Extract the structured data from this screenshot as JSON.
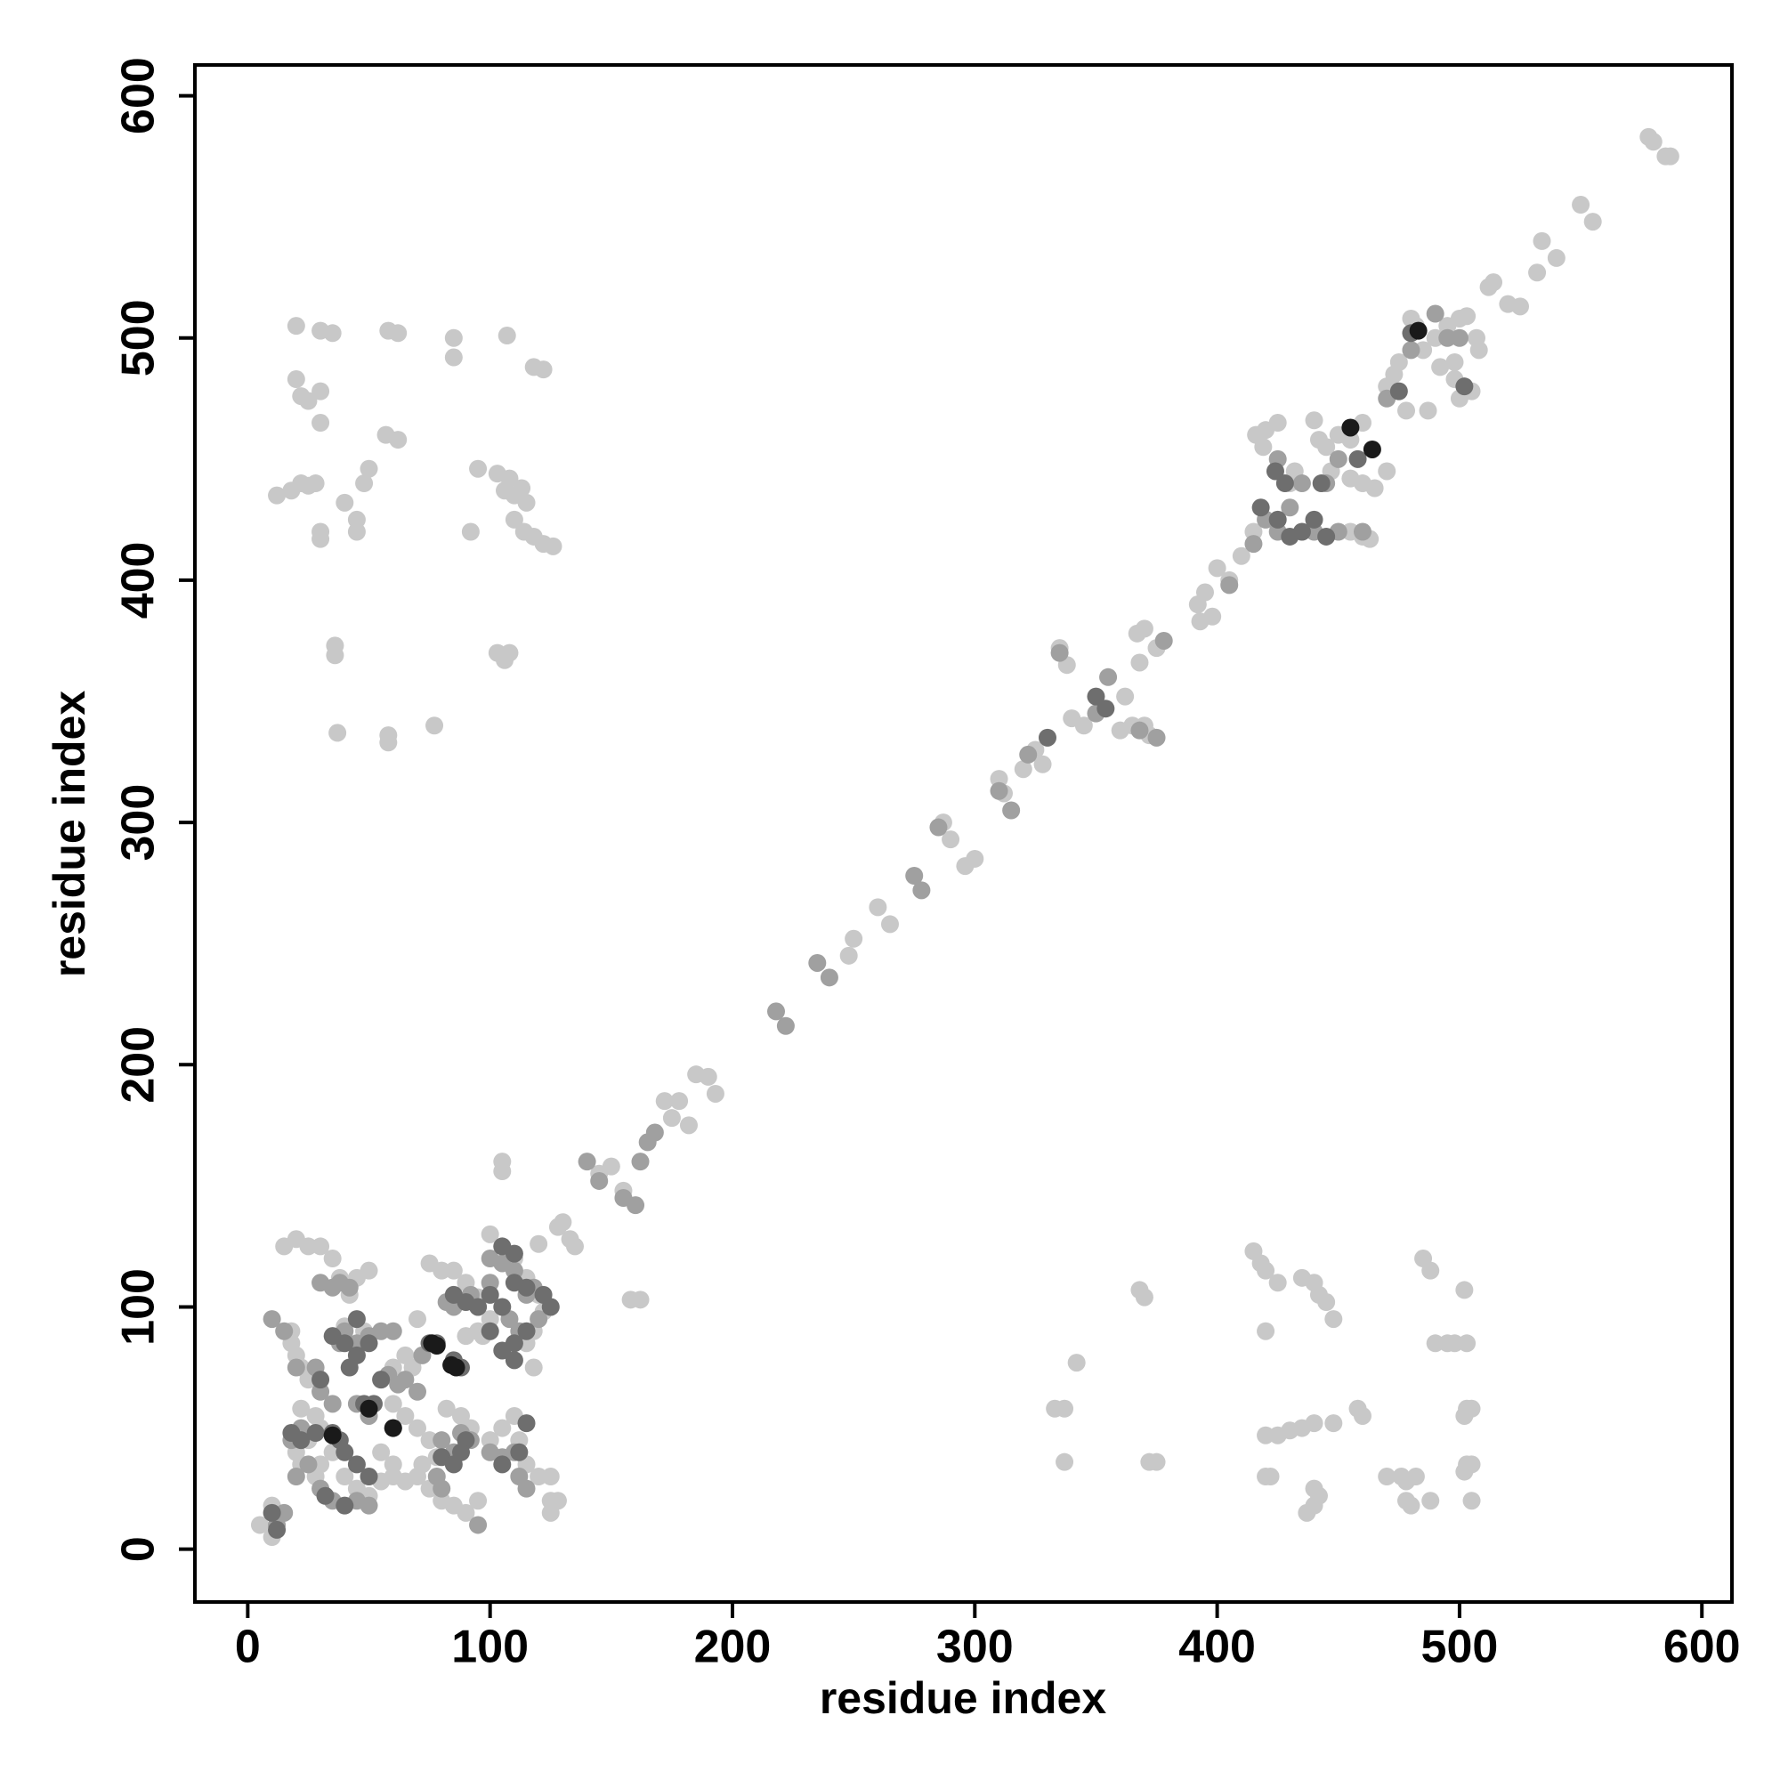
{
  "chart_data": {
    "type": "scatter",
    "x_label": "residue index",
    "y_label": "residue index",
    "xlim": [
      -21.8,
      612.4
    ],
    "ylim": [
      -21.8,
      612.7
    ],
    "xticks": [
      0,
      100,
      200,
      300,
      400,
      500,
      600
    ],
    "yticks": [
      0,
      100,
      200,
      300,
      400,
      500,
      600
    ],
    "series": [
      {
        "color": "#c8c8c8",
        "x": [
          578,
          580,
          585,
          587,
          550,
          555,
          540,
          534,
          532,
          512,
          514,
          525,
          520,
          503,
          500,
          507,
          508,
          505,
          500,
          498,
          495,
          490,
          485,
          480,
          482,
          475,
          478,
          470,
          473,
          487,
          492,
          498,
          460,
          455,
          450,
          445,
          440,
          442,
          447,
          455,
          460,
          465,
          470,
          463,
          460,
          455,
          425,
          420,
          416,
          419,
          430,
          432,
          410,
          415,
          405,
          400,
          395,
          392,
          398,
          393,
          370,
          375,
          367,
          368,
          362,
          365,
          360,
          370,
          372,
          338,
          335,
          340,
          345,
          310,
          312,
          320,
          325,
          328,
          300,
          296,
          287,
          290,
          250,
          248,
          260,
          265,
          190,
          193,
          185,
          178,
          182,
          172,
          175,
          150,
          145,
          155,
          158,
          162,
          133,
          128,
          120,
          95,
          100,
          97
        ],
        "y": [
          583,
          581,
          575,
          575,
          555,
          548,
          533,
          540,
          527,
          521,
          523,
          513,
          514,
          509,
          508,
          500,
          495,
          478,
          475,
          490,
          505,
          500,
          495,
          508,
          505,
          490,
          470,
          480,
          485,
          470,
          488,
          483,
          465,
          458,
          460,
          455,
          466,
          458,
          445,
          442,
          440,
          438,
          445,
          417,
          418,
          420,
          465,
          462,
          460,
          455,
          440,
          445,
          410,
          420,
          400,
          405,
          395,
          390,
          385,
          383,
          380,
          372,
          378,
          366,
          352,
          340,
          338,
          340,
          336,
          365,
          372,
          343,
          340,
          318,
          312,
          322,
          330,
          324,
          285,
          282,
          300,
          293,
          252,
          245,
          265,
          258,
          195,
          188,
          196,
          185,
          175,
          185,
          178,
          158,
          155,
          148,
          103,
          103,
          128,
          133,
          126,
          104,
          90,
          88
        ]
      },
      {
        "color": "#c8c8c8",
        "x": [
          20,
          30,
          35,
          58,
          62,
          85,
          85,
          107,
          118,
          122,
          20,
          22,
          25,
          30,
          30,
          57,
          62,
          50,
          48,
          40,
          45,
          45,
          30,
          30,
          12,
          18,
          22,
          25,
          28,
          92,
          95,
          103,
          108,
          106,
          110,
          113,
          115,
          110,
          114,
          118,
          122,
          126,
          36,
          36,
          103,
          106,
          108,
          37,
          58,
          58,
          77
        ],
        "y": [
          505,
          503,
          502,
          503,
          502,
          500,
          492,
          501,
          488,
          487,
          483,
          476,
          474,
          478,
          465,
          460,
          458,
          446,
          440,
          432,
          425,
          420,
          420,
          417,
          435,
          437,
          440,
          439,
          440,
          420,
          446,
          444,
          442,
          437,
          435,
          438,
          432,
          425,
          420,
          418,
          415,
          414,
          373,
          369,
          370,
          367,
          370,
          337,
          336,
          333,
          340
        ]
      },
      {
        "color": "#c8c8c8",
        "x": [
          415,
          418,
          420,
          425,
          435,
          440,
          442,
          445,
          448,
          420,
          485,
          488,
          502,
          490,
          495,
          498,
          503,
          368,
          370,
          333,
          337,
          342,
          337,
          372,
          375,
          420,
          425,
          430,
          435,
          440,
          448,
          458,
          460,
          503,
          502,
          505,
          503,
          502,
          505,
          505,
          470,
          476,
          478,
          482,
          478,
          480,
          488,
          420,
          422,
          437,
          440,
          440,
          442
        ],
        "y": [
          123,
          118,
          115,
          110,
          112,
          110,
          105,
          102,
          95,
          90,
          120,
          115,
          107,
          85,
          85,
          85,
          85,
          107,
          104,
          58,
          58,
          77,
          36,
          36,
          36,
          47,
          47,
          49,
          50,
          52,
          52,
          58,
          55,
          58,
          55,
          58,
          35,
          32,
          35,
          20,
          30,
          30,
          28,
          30,
          20,
          18,
          20,
          30,
          30,
          15,
          18,
          25,
          22
        ]
      },
      {
        "color": "#c8c8c8",
        "x": [
          5,
          10,
          12,
          10,
          15,
          20,
          25,
          30,
          35,
          18,
          20,
          22,
          18,
          25,
          22,
          28,
          30,
          35,
          40,
          45,
          50,
          55,
          60,
          65,
          70,
          75,
          80,
          85,
          90,
          95,
          72,
          78,
          82,
          88,
          92,
          100,
          105,
          110,
          112,
          115,
          120,
          125,
          125,
          125,
          128,
          130,
          135,
          100,
          105,
          110,
          115,
          120,
          118,
          100,
          95,
          90,
          85,
          75,
          80,
          70,
          65,
          60,
          55,
          48,
          42,
          38,
          45,
          50,
          40,
          60,
          65,
          70,
          75,
          68,
          105,
          105,
          118,
          115,
          122,
          125,
          95,
          90,
          30,
          28,
          25,
          22,
          20,
          55,
          60
        ],
        "y": [
          10,
          5,
          15,
          18,
          125,
          128,
          125,
          125,
          120,
          85,
          80,
          75,
          90,
          70,
          58,
          55,
          50,
          40,
          30,
          25,
          22,
          28,
          30,
          28,
          30,
          25,
          20,
          18,
          15,
          20,
          35,
          38,
          58,
          55,
          50,
          45,
          50,
          55,
          45,
          35,
          30,
          30,
          20,
          15,
          20,
          135,
          125,
          130,
          125,
          120,
          112,
          105,
          90,
          95,
          100,
          110,
          115,
          118,
          115,
          95,
          80,
          75,
          70,
          90,
          105,
          112,
          112,
          115,
          92,
          60,
          55,
          50,
          45,
          75,
          160,
          156,
          75,
          85,
          98,
          100,
          90,
          88,
          35,
          30,
          45,
          35,
          40,
          40,
          35
        ]
      },
      {
        "color": "#a0a0a0",
        "x": [
          490,
          495,
          480,
          470,
          445,
          450,
          440,
          450,
          460,
          425,
          430,
          435,
          415,
          420,
          425,
          405,
          378,
          335,
          350,
          355,
          375,
          368,
          322,
          310,
          315,
          285,
          275,
          278,
          235,
          240,
          218,
          222,
          165,
          168,
          162,
          160,
          155,
          140,
          145,
          500
        ],
        "y": [
          510,
          500,
          495,
          475,
          440,
          450,
          420,
          420,
          420,
          450,
          430,
          440,
          415,
          425,
          420,
          398,
          375,
          370,
          345,
          360,
          335,
          338,
          328,
          313,
          305,
          298,
          278,
          272,
          242,
          236,
          222,
          216,
          168,
          172,
          160,
          142,
          145,
          160,
          152,
          500
        ]
      },
      {
        "color": "#a0a0a0",
        "x": [
          10,
          15,
          20,
          22,
          25,
          35,
          38,
          40,
          45,
          50,
          55,
          30,
          35,
          45,
          50,
          38,
          42,
          30,
          35,
          60,
          70,
          80,
          85,
          88,
          92,
          100,
          105,
          110,
          112,
          115,
          100,
          105,
          110,
          115,
          118,
          120,
          108,
          112,
          100,
          92,
          85,
          82,
          75,
          72,
          65,
          58,
          62,
          45,
          50,
          30,
          28,
          12,
          15,
          95,
          18,
          20,
          78,
          80
        ],
        "y": [
          95,
          90,
          75,
          50,
          35,
          60,
          85,
          90,
          85,
          88,
          90,
          25,
          20,
          20,
          18,
          110,
          108,
          110,
          108,
          90,
          65,
          45,
          40,
          48,
          45,
          40,
          38,
          40,
          30,
          25,
          120,
          118,
          115,
          105,
          108,
          95,
          95,
          90,
          110,
          105,
          100,
          102,
          85,
          80,
          70,
          72,
          68,
          60,
          55,
          65,
          75,
          10,
          15,
          10,
          45,
          30,
          30,
          25
        ]
      },
      {
        "color": "#6e6e6e",
        "x": [
          480,
          475,
          502,
          440,
          443,
          458,
          435,
          424,
          428,
          418,
          430,
          350,
          354,
          330,
          445,
          425
        ],
        "y": [
          502,
          478,
          480,
          425,
          440,
          450,
          420,
          445,
          440,
          430,
          418,
          352,
          347,
          335,
          418,
          425
        ]
      },
      {
        "color": "#6e6e6e",
        "x": [
          35,
          38,
          40,
          45,
          50,
          48,
          52,
          55,
          60,
          50,
          45,
          42,
          35,
          30,
          28,
          22,
          18,
          32,
          40,
          80,
          85,
          90,
          88,
          95,
          100,
          105,
          110,
          115,
          122,
          125,
          110,
          105,
          100,
          115,
          110,
          75,
          78,
          85,
          88,
          85,
          90,
          105,
          110,
          112,
          105,
          115,
          10,
          12,
          45,
          40
        ],
        "y": [
          48,
          45,
          40,
          35,
          30,
          60,
          60,
          70,
          50,
          85,
          80,
          75,
          88,
          70,
          48,
          45,
          48,
          22,
          18,
          38,
          35,
          45,
          40,
          100,
          105,
          100,
          110,
          108,
          105,
          100,
          85,
          82,
          90,
          90,
          78,
          85,
          85,
          78,
          75,
          105,
          102,
          125,
          122,
          40,
          35,
          52,
          15,
          8,
          95,
          85
        ]
      },
      {
        "color": "#1a1a1a",
        "x": [
          455,
          464,
          483,
          76,
          78,
          84,
          86,
          60,
          50,
          35
        ],
        "y": [
          463,
          454,
          503,
          85,
          84,
          76,
          75,
          50,
          58,
          47
        ]
      }
    ]
  }
}
